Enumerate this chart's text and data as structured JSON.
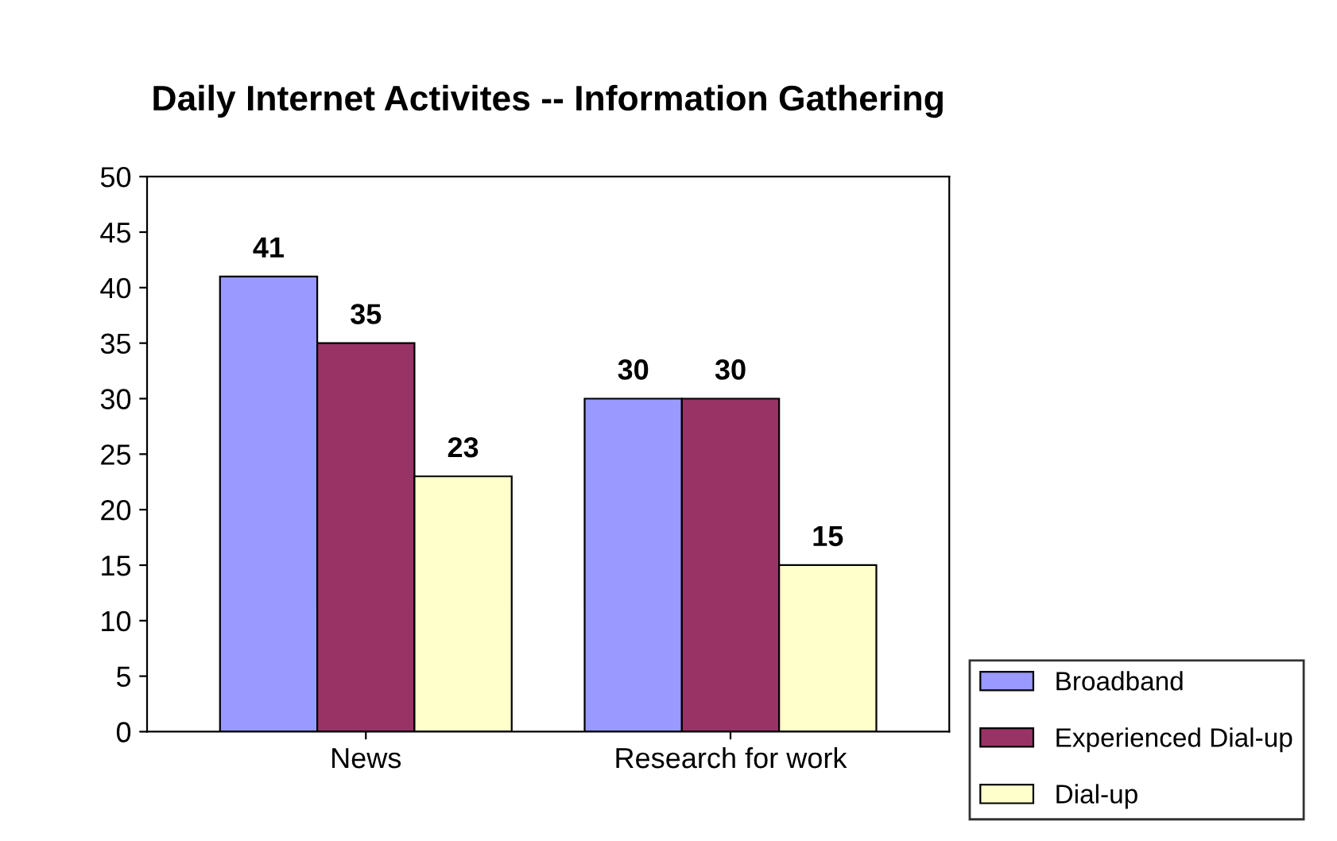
{
  "chart_data": {
    "type": "bar",
    "title": "Daily Internet Activites -- Information Gathering",
    "categories": [
      "News",
      "Research for work"
    ],
    "series": [
      {
        "name": "Broadband",
        "color": "#9999ff",
        "values": [
          41,
          30
        ]
      },
      {
        "name": "Experienced Dial-up",
        "color": "#993366",
        "values": [
          35,
          30
        ]
      },
      {
        "name": "Dial-up",
        "color": "#ffffcc",
        "values": [
          23,
          15
        ]
      }
    ],
    "ylim": [
      0,
      50
    ],
    "yticks": [
      0,
      5,
      10,
      15,
      20,
      25,
      30,
      35,
      40,
      45,
      50
    ],
    "grid": false,
    "legend": "bottom right",
    "data_labels": true
  }
}
